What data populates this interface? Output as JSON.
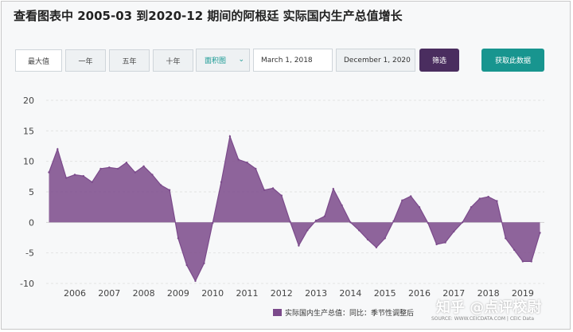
{
  "header": {
    "title": "查看图表中 2005-03 到2020-12 期间的阿根廷 实际国内生产总值增长"
  },
  "toolbar": {
    "ranges": [
      "最大值",
      "一年",
      "五年",
      "十年"
    ],
    "chart_type": "面积图",
    "start_date": "March 1, 2018",
    "end_date": "December 1, 2020",
    "filter_label": "筛选",
    "get_data_label": "获取此数据"
  },
  "legend_label": "实际国内生产总值：同比：季节性调整后",
  "source": "SOURCE: WWW.CEICDATA.COM | CEIC Data",
  "watermark": "知乎 @点评校尉",
  "colors": {
    "area": "#7b4a8b",
    "filter_button": "#4a2d5f",
    "get_data_button": "#18958f"
  },
  "chart_data": {
    "type": "area",
    "title": "",
    "xlabel": "",
    "ylabel": "",
    "ylim": [
      -10,
      20
    ],
    "yticks": [
      20,
      15,
      10,
      5,
      0,
      -5,
      -10
    ],
    "xticks": [
      2006,
      2007,
      2008,
      2009,
      2010,
      2011,
      2012,
      2013,
      2014,
      2015,
      2016,
      2017,
      2018,
      2019
    ],
    "grid": true,
    "legend_position": "bottom-right",
    "series": [
      {
        "name": "实际国内生产总值：同比：季节性调整后",
        "x": [
          2005.25,
          2005.5,
          2005.75,
          2006.0,
          2006.25,
          2006.5,
          2006.75,
          2007.0,
          2007.25,
          2007.5,
          2007.75,
          2008.0,
          2008.25,
          2008.5,
          2008.75,
          2009.0,
          2009.25,
          2009.5,
          2009.75,
          2010.0,
          2010.25,
          2010.5,
          2010.75,
          2011.0,
          2011.25,
          2011.5,
          2011.75,
          2012.0,
          2012.25,
          2012.5,
          2012.75,
          2013.0,
          2013.25,
          2013.5,
          2013.75,
          2014.0,
          2014.25,
          2014.5,
          2014.75,
          2015.0,
          2015.25,
          2015.5,
          2015.75,
          2016.0,
          2016.25,
          2016.5,
          2016.75,
          2017.0,
          2017.25,
          2017.5,
          2017.75,
          2018.0,
          2018.25,
          2018.5,
          2018.75,
          2019.0,
          2019.25,
          2019.5
        ],
        "values": [
          8.2,
          12.0,
          7.3,
          7.8,
          7.6,
          6.6,
          8.8,
          9.0,
          8.8,
          9.8,
          8.2,
          9.2,
          7.8,
          6.1,
          5.3,
          -2.6,
          -7.0,
          -9.6,
          -6.7,
          -0.1,
          6.6,
          14.1,
          10.3,
          9.8,
          8.8,
          5.3,
          5.6,
          4.4,
          0.1,
          -3.8,
          -1.3,
          0.3,
          1.0,
          5.5,
          2.8,
          0.0,
          -1.3,
          -2.8,
          -4.1,
          -2.6,
          0.2,
          3.6,
          4.3,
          2.5,
          -0.1,
          -3.6,
          -3.3,
          -1.5,
          0.0,
          2.5,
          3.9,
          4.2,
          3.5,
          -2.6,
          -4.5,
          -6.4,
          -6.4,
          -1.7
        ]
      }
    ]
  }
}
